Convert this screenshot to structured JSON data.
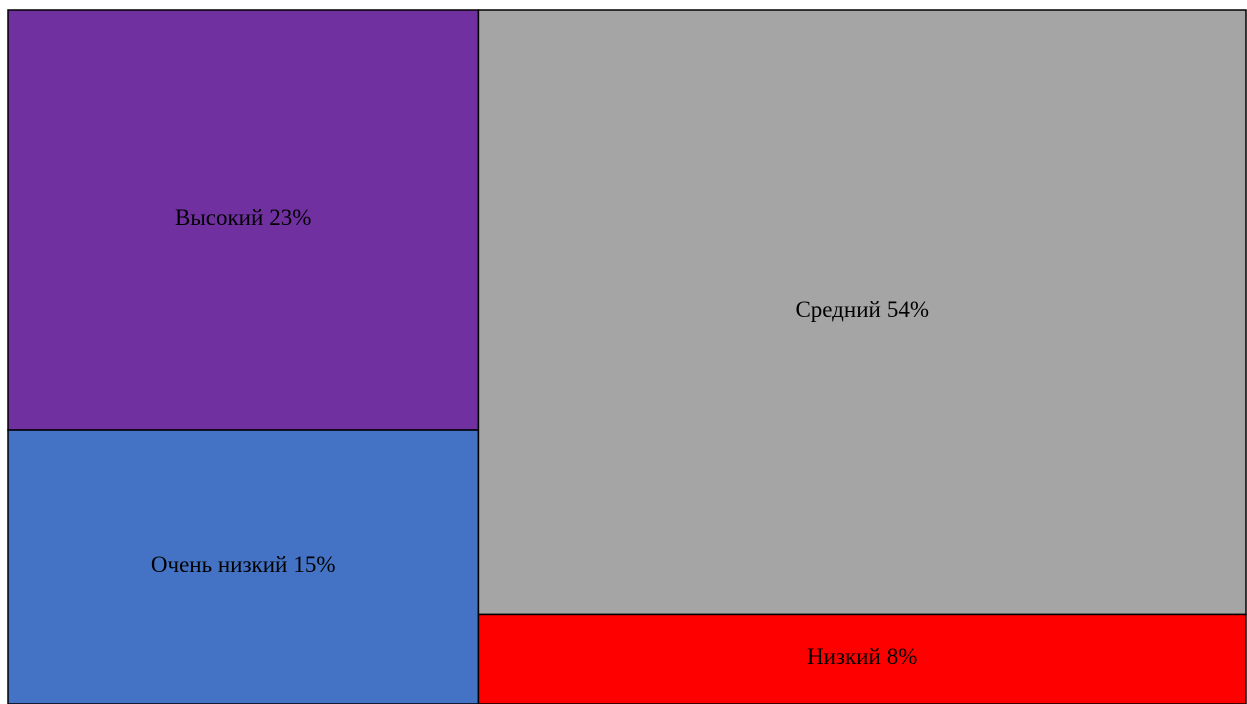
{
  "chart_data": {
    "type": "treemap",
    "categories": [
      "Высокий",
      "Очень низкий",
      "Средний",
      "Низкий"
    ],
    "values": [
      23,
      15,
      54,
      8
    ],
    "value_labels": [
      "23%",
      "15%",
      "54%",
      "8%"
    ],
    "colors": [
      "#7030a0",
      "#4472c4",
      "#a5a5a5",
      "#ff0000"
    ]
  }
}
